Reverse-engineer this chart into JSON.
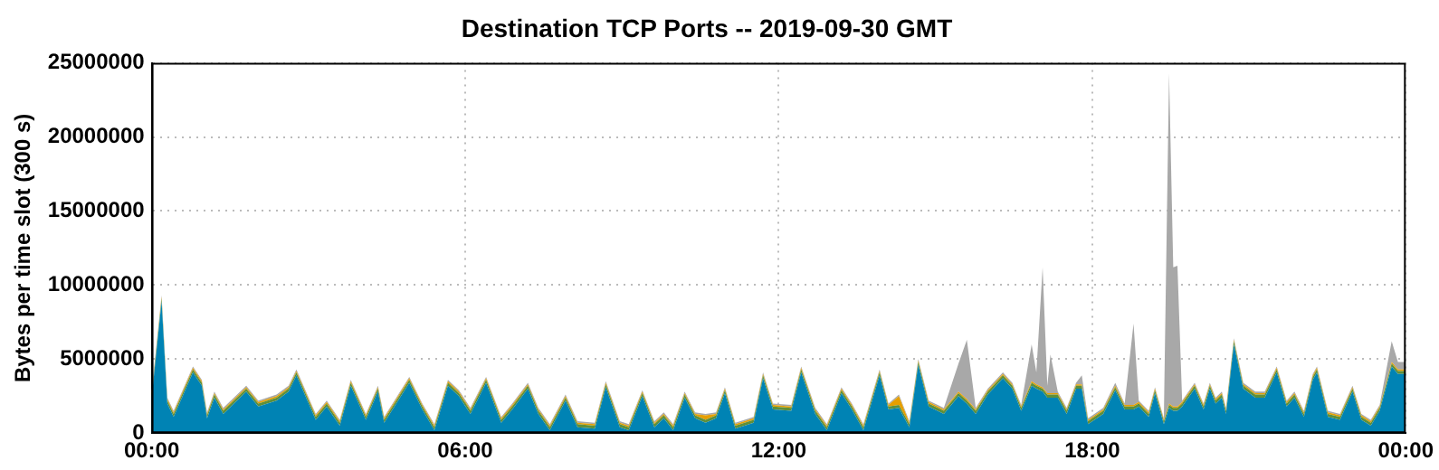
{
  "chart_data": {
    "type": "area",
    "title": "Destination TCP Ports -- 2019-09-30 GMT",
    "ylabel": "Bytes per time slot (300 s)",
    "stacked": true,
    "grid": true,
    "legend": false,
    "xlim": [
      0,
      24
    ],
    "xticks": [
      {
        "value": 0,
        "label": "00:00"
      },
      {
        "value": 6,
        "label": "06:00"
      },
      {
        "value": 12,
        "label": "12:00"
      },
      {
        "value": 18,
        "label": "18:00"
      },
      {
        "value": 24,
        "label": "00:00"
      }
    ],
    "ylim": [
      0,
      25000000
    ],
    "yticks": [
      0,
      5000000,
      10000000,
      15000000,
      20000000,
      25000000
    ],
    "x": [
      0,
      0.19,
      0.3,
      0.42,
      0.79,
      0.96,
      1.06,
      1.2,
      1.37,
      1.81,
      2.04,
      2.39,
      2.62,
      2.77,
      3.14,
      3.35,
      3.6,
      3.81,
      4.1,
      4.33,
      4.45,
      4.93,
      5.18,
      5.41,
      5.67,
      5.88,
      6.1,
      6.4,
      6.69,
      6.9,
      7.2,
      7.4,
      7.62,
      7.92,
      8.15,
      8.48,
      8.69,
      8.96,
      9.13,
      9.39,
      9.62,
      9.8,
      9.98,
      10.2,
      10.4,
      10.6,
      10.8,
      10.97,
      11.17,
      11.52,
      11.7,
      11.89,
      12.24,
      12.43,
      12.7,
      12.92,
      13.2,
      13.4,
      13.62,
      13.93,
      14.1,
      14.3,
      14.5,
      14.67,
      14.87,
      15.16,
      15.44,
      15.6,
      15.77,
      16.0,
      16.29,
      16.47,
      16.64,
      16.84,
      16.93,
      17.05,
      17.14,
      17.2,
      17.34,
      17.51,
      17.69,
      17.8,
      17.92,
      18.21,
      18.44,
      18.62,
      18.79,
      18.89,
      19.08,
      19.2,
      19.37,
      19.47,
      19.55,
      19.63,
      19.72,
      19.96,
      20.13,
      20.25,
      20.36,
      20.48,
      20.56,
      20.71,
      20.89,
      21.12,
      21.3,
      21.53,
      21.72,
      21.87,
      22.05,
      22.22,
      22.3,
      22.51,
      22.74,
      22.98,
      23.15,
      23.33,
      23.5,
      23.73,
      23.85,
      24
    ],
    "series": [
      {
        "color": "#0083b4",
        "values": [
          2400000.0,
          8900000.0,
          2000000.0,
          1100000.0,
          4100000.0,
          3200000.0,
          1000000.0,
          2400000.0,
          1300000.0,
          2800000.0,
          1800000.0,
          2200000.0,
          2800000.0,
          3900000.0,
          900000.0,
          1800000.0,
          500000.0,
          3200000.0,
          900000.0,
          2800000.0,
          700000.0,
          3400000.0,
          1600000.0,
          200000.0,
          3200000.0,
          2500000.0,
          1300000.0,
          3400000.0,
          700000.0,
          1600000.0,
          3000000.0,
          1300000.0,
          200000.0,
          2200000.0,
          400000.0,
          300000.0,
          3100000.0,
          400000.0,
          200000.0,
          2500000.0,
          400000.0,
          1000000.0,
          200000.0,
          2400000.0,
          1000000.0,
          700000.0,
          1000000.0,
          2700000.0,
          300000.0,
          700000.0,
          3700000.0,
          1600000.0,
          1500000.0,
          4100000.0,
          1300000.0,
          200000.0,
          2700000.0,
          1600000.0,
          200000.0,
          3900000.0,
          1600000.0,
          1700000.0,
          400000.0,
          4600000.0,
          1800000.0,
          1300000.0,
          2500000.0,
          2000000.0,
          1300000.0,
          2600000.0,
          3700000.0,
          3000000.0,
          1500000.0,
          3200000.0,
          3000000.0,
          2800000.0,
          2400000.0,
          2400000.0,
          2400000.0,
          1300000.0,
          3000000.0,
          3000000.0,
          600000.0,
          1300000.0,
          2900000.0,
          1600000.0,
          1600000.0,
          1800000.0,
          1100000.0,
          2700000.0,
          600000.0,
          1700000.0,
          1500000.0,
          1500000.0,
          1800000.0,
          3000000.0,
          1600000.0,
          3000000.0,
          2000000.0,
          2400000.0,
          1300000.0,
          6000000.0,
          3000000.0,
          2400000.0,
          2400000.0,
          4100000.0,
          1800000.0,
          2400000.0,
          1100000.0,
          3600000.0,
          4100000.0,
          1100000.0,
          900000.0,
          2800000.0,
          900000.0,
          500000.0,
          1500000.0,
          4500000.0,
          4000000.0,
          4000000.0
        ]
      },
      {
        "color": "#5e8f3a",
        "values": [
          200000.0,
          200000.0,
          200000.0,
          200000.0,
          200000.0,
          200000.0,
          200000.0,
          200000.0,
          200000.0,
          200000.0,
          200000.0,
          200000.0,
          200000.0,
          200000.0,
          200000.0,
          200000.0,
          200000.0,
          200000.0,
          200000.0,
          200000.0,
          200000.0,
          200000.0,
          200000.0,
          200000.0,
          200000.0,
          200000.0,
          200000.0,
          200000.0,
          200000.0,
          200000.0,
          200000.0,
          200000.0,
          200000.0,
          200000.0,
          200000.0,
          200000.0,
          200000.0,
          200000.0,
          200000.0,
          200000.0,
          200000.0,
          200000.0,
          200000.0,
          200000.0,
          200000.0,
          200000.0,
          200000.0,
          200000.0,
          200000.0,
          200000.0,
          200000.0,
          200000.0,
          200000.0,
          200000.0,
          200000.0,
          200000.0,
          200000.0,
          200000.0,
          200000.0,
          200000.0,
          200000.0,
          200000.0,
          200000.0,
          200000.0,
          200000.0,
          200000.0,
          200000.0,
          200000.0,
          200000.0,
          200000.0,
          200000.0,
          200000.0,
          200000.0,
          200000.0,
          200000.0,
          200000.0,
          200000.0,
          200000.0,
          200000.0,
          200000.0,
          200000.0,
          200000.0,
          200000.0,
          200000.0,
          200000.0,
          200000.0,
          200000.0,
          200000.0,
          200000.0,
          200000.0,
          200000.0,
          200000.0,
          200000.0,
          200000.0,
          200000.0,
          200000.0,
          200000.0,
          200000.0,
          200000.0,
          200000.0,
          200000.0,
          200000.0,
          200000.0,
          200000.0,
          200000.0,
          200000.0,
          200000.0,
          200000.0,
          200000.0,
          200000.0,
          200000.0,
          200000.0,
          200000.0,
          200000.0,
          200000.0,
          200000.0,
          200000.0,
          200000.0,
          200000.0,
          200000.0
        ]
      },
      {
        "color": "#e69f00",
        "values": [
          100000.0,
          100000.0,
          100000.0,
          100000.0,
          100000.0,
          100000.0,
          100000.0,
          100000.0,
          100000.0,
          100000.0,
          100000.0,
          100000.0,
          100000.0,
          100000.0,
          100000.0,
          100000.0,
          100000.0,
          100000.0,
          100000.0,
          100000.0,
          100000.0,
          100000.0,
          100000.0,
          100000.0,
          100000.0,
          100000.0,
          100000.0,
          100000.0,
          100000.0,
          100000.0,
          100000.0,
          100000.0,
          100000.0,
          100000.0,
          100000.0,
          100000.0,
          100000.0,
          100000.0,
          100000.0,
          100000.0,
          100000.0,
          100000.0,
          100000.0,
          100000.0,
          100000.0,
          300000.0,
          100000.0,
          100000.0,
          100000.0,
          100000.0,
          100000.0,
          100000.0,
          100000.0,
          100000.0,
          100000.0,
          100000.0,
          100000.0,
          100000.0,
          100000.0,
          100000.0,
          100000.0,
          600000.0,
          100000.0,
          100000.0,
          100000.0,
          100000.0,
          100000.0,
          100000.0,
          100000.0,
          100000.0,
          100000.0,
          100000.0,
          100000.0,
          100000.0,
          100000.0,
          100000.0,
          100000.0,
          100000.0,
          100000.0,
          100000.0,
          100000.0,
          100000.0,
          100000.0,
          100000.0,
          100000.0,
          100000.0,
          100000.0,
          100000.0,
          100000.0,
          100000.0,
          100000.0,
          100000.0,
          100000.0,
          100000.0,
          100000.0,
          100000.0,
          100000.0,
          100000.0,
          100000.0,
          100000.0,
          100000.0,
          100000.0,
          100000.0,
          100000.0,
          100000.0,
          100000.0,
          100000.0,
          100000.0,
          100000.0,
          100000.0,
          100000.0,
          100000.0,
          100000.0,
          100000.0,
          100000.0,
          100000.0,
          100000.0,
          100000.0,
          100000.0,
          100000.0
        ]
      },
      {
        "color": "#a8a8a8",
        "values": [
          100000.0,
          100000.0,
          100000.0,
          100000.0,
          100000.0,
          100000.0,
          100000.0,
          100000.0,
          100000.0,
          100000.0,
          100000.0,
          100000.0,
          100000.0,
          100000.0,
          100000.0,
          100000.0,
          100000.0,
          100000.0,
          100000.0,
          100000.0,
          100000.0,
          100000.0,
          100000.0,
          100000.0,
          100000.0,
          100000.0,
          100000.0,
          100000.0,
          100000.0,
          100000.0,
          100000.0,
          100000.0,
          100000.0,
          100000.0,
          100000.0,
          100000.0,
          100000.0,
          100000.0,
          100000.0,
          100000.0,
          100000.0,
          100000.0,
          100000.0,
          100000.0,
          100000.0,
          100000.0,
          100000.0,
          100000.0,
          100000.0,
          100000.0,
          100000.0,
          100000.0,
          100000.0,
          100000.0,
          100000.0,
          100000.0,
          100000.0,
          100000.0,
          100000.0,
          100000.0,
          100000.0,
          100000.0,
          100000.0,
          100000.0,
          100000.0,
          100000.0,
          1900000.0,
          4000000.0,
          100000.0,
          100000.0,
          100000.0,
          100000.0,
          100000.0,
          2500000.0,
          800000.0,
          8100000.0,
          500000.0,
          2600000.0,
          100000.0,
          100000.0,
          100000.0,
          600000.0,
          100000.0,
          100000.0,
          200000.0,
          100000.0,
          5500000.0,
          100000.0,
          100000.0,
          100000.0,
          100000.0,
          22300000.0,
          9400000.0,
          9500000.0,
          100000.0,
          100000.0,
          100000.0,
          100000.0,
          100000.0,
          100000.0,
          100000.0,
          100000.0,
          100000.0,
          100000.0,
          100000.0,
          100000.0,
          100000.0,
          100000.0,
          100000.0,
          100000.0,
          100000.0,
          100000.0,
          100000.0,
          100000.0,
          100000.0,
          100000.0,
          100000.0,
          1400000.0,
          500000.0,
          500000.0
        ]
      }
    ]
  }
}
